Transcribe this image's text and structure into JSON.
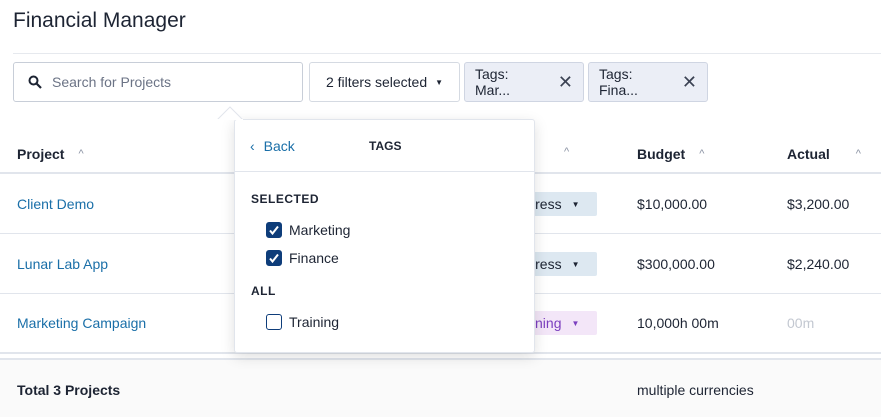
{
  "title": "Financial Manager",
  "search": {
    "placeholder": "Search for Projects",
    "value": ""
  },
  "filter_button": {
    "label": "2 filters selected"
  },
  "chips": [
    {
      "label": "Tags: Mar..."
    },
    {
      "label": "Tags: Fina..."
    }
  ],
  "table": {
    "headers": {
      "project": "Project",
      "status": "",
      "budget": "Budget",
      "actual": "Actual"
    },
    "rows": [
      {
        "project": "Client Demo",
        "status": "In Progress",
        "status_color": "#dde8f1",
        "budget": "$10,000.00",
        "actual": "$3,200.00"
      },
      {
        "project": "Lunar Lab App",
        "status": "In Progress",
        "status_color": "#dde8f1",
        "budget": "$300,000.00",
        "actual": "$2,240.00"
      },
      {
        "project": "Marketing Campaign",
        "status": "Planning",
        "status_color": "#f3e6f8",
        "budget": "10,000h 00m",
        "actual": "00m"
      }
    ],
    "total": {
      "label": "Total 3 Projects",
      "budget": "multiple currencies"
    }
  },
  "popup": {
    "back": "Back",
    "title": "TAGS",
    "selected_heading": "SELECTED",
    "all_heading": "ALL",
    "selected": [
      {
        "label": "Marketing",
        "checked": true
      },
      {
        "label": "Finance",
        "checked": true
      }
    ],
    "all": [
      {
        "label": "Training",
        "checked": false
      }
    ]
  },
  "colors": {
    "link": "#1a6fa8",
    "checkbox": "#0e3d7a",
    "planning_text": "#7b3fbf"
  }
}
